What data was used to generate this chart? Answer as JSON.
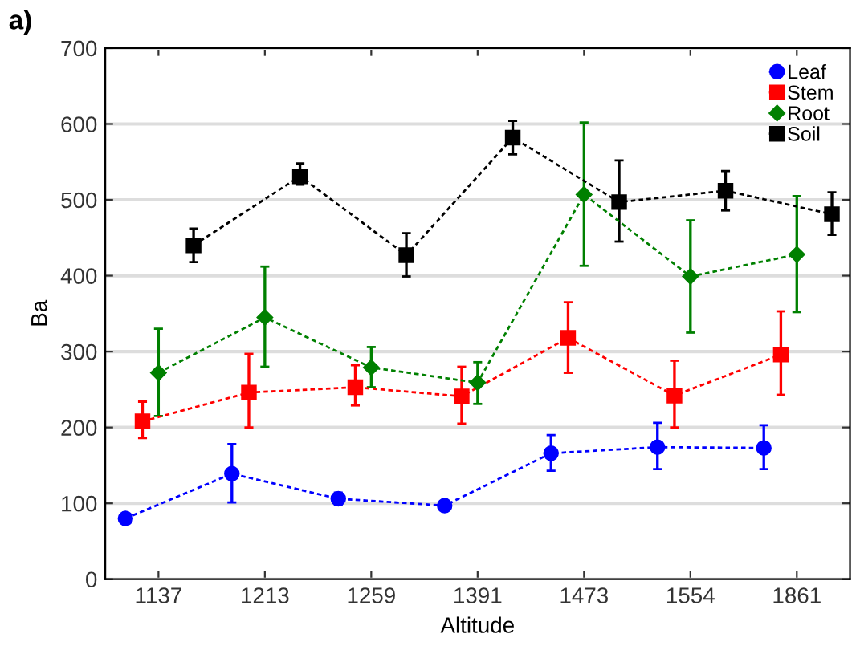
{
  "chart_data": {
    "type": "line",
    "xlabel": "Altitude",
    "ylabel": "Ba",
    "annotations": [
      "a)"
    ],
    "categories": [
      "1137",
      "1213",
      "1259",
      "1391",
      "1473",
      "1554",
      "1861"
    ],
    "ylim": [
      0,
      700
    ],
    "yticks": [
      0,
      100,
      200,
      300,
      400,
      500,
      600,
      700
    ],
    "grid": "y",
    "legend": "top right",
    "line_style": "dashed",
    "series": [
      {
        "name": "Leaf",
        "color": "#0000ff",
        "marker": "circle",
        "values": [
          80,
          139,
          106,
          97,
          166,
          174,
          173
        ],
        "errors": [
          null,
          [
            101,
            178
          ],
          [
            98,
            114
          ],
          null,
          [
            143,
            190
          ],
          [
            145,
            206
          ],
          [
            145,
            203
          ]
        ]
      },
      {
        "name": "Stem",
        "color": "#ff0000",
        "marker": "square",
        "values": [
          208,
          246,
          253,
          241,
          318,
          242,
          296
        ],
        "errors": [
          [
            186,
            234
          ],
          [
            200,
            297
          ],
          [
            229,
            282
          ],
          [
            205,
            280
          ],
          [
            272,
            365
          ],
          [
            200,
            288
          ],
          [
            243,
            353
          ]
        ]
      },
      {
        "name": "Root",
        "color": "#008000",
        "marker": "diamond",
        "values": [
          272,
          345,
          279,
          259,
          507,
          399,
          428
        ],
        "errors": [
          [
            215,
            330
          ],
          [
            280,
            412
          ],
          [
            253,
            306
          ],
          [
            231,
            286
          ],
          [
            413,
            602
          ],
          [
            325,
            473
          ],
          [
            352,
            505
          ]
        ]
      },
      {
        "name": "Soil",
        "color": "#000000",
        "marker": "square",
        "values": [
          440,
          531,
          427,
          582,
          497,
          512,
          481
        ],
        "errors": [
          [
            418,
            462
          ],
          [
            520,
            548
          ],
          [
            399,
            456
          ],
          [
            560,
            604
          ],
          [
            445,
            552
          ],
          [
            486,
            538
          ],
          [
            454,
            510
          ]
        ]
      }
    ]
  }
}
